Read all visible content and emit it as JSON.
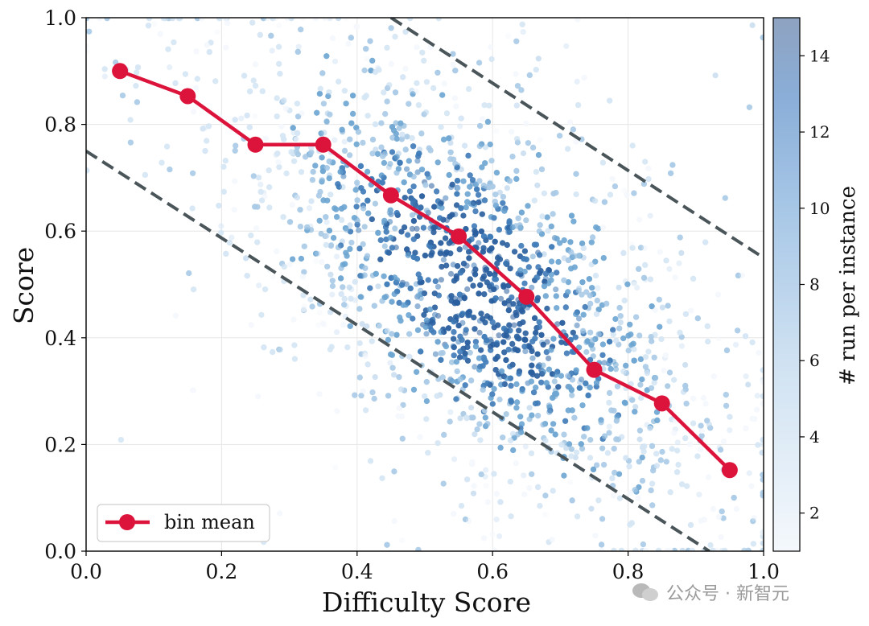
{
  "chart_data": {
    "type": "scatter",
    "xlabel": "Difficulty Score",
    "ylabel": "Score",
    "xlim": [
      0.0,
      1.0
    ],
    "ylim": [
      0.0,
      1.0
    ],
    "x_ticks": [
      "0.0",
      "0.2",
      "0.4",
      "0.6",
      "0.8",
      "1.0"
    ],
    "y_ticks": [
      "0.0",
      "0.2",
      "0.4",
      "0.6",
      "0.8",
      "1.0"
    ],
    "grid": true,
    "legend": {
      "placement": "lower-left",
      "entries": [
        "bin mean"
      ]
    },
    "series": [
      {
        "name": "bin mean",
        "style": "line-with-markers",
        "color": "#dc143c",
        "x": [
          0.05,
          0.15,
          0.25,
          0.35,
          0.45,
          0.55,
          0.65,
          0.75,
          0.85,
          0.95
        ],
        "y": [
          0.9,
          0.853,
          0.762,
          0.762,
          0.667,
          0.59,
          0.477,
          0.34,
          0.277,
          0.152
        ]
      }
    ],
    "reference_lines": [
      {
        "style": "dashed",
        "color": "#4a555a",
        "x": [
          0.45,
          1.0
        ],
        "y": [
          1.0,
          0.55
        ]
      },
      {
        "style": "dashed",
        "color": "#4a555a",
        "x": [
          0.0,
          0.92
        ],
        "y": [
          0.75,
          0.0
        ]
      }
    ],
    "scatter_cloud": {
      "count": 5200,
      "color_encoding": "# run per instance",
      "colormap": [
        "#f4f8fc",
        "#d6e5f4",
        "#a9cbe6",
        "#6ea6d2",
        "#3f7cb8",
        "#2a5f9e"
      ]
    },
    "colorbar": {
      "label": "# run per instance",
      "range": [
        1,
        15
      ],
      "ticks": [
        "2",
        "4",
        "6",
        "8",
        "10",
        "12",
        "14"
      ]
    }
  },
  "watermark": {
    "text": "公众号 · 新智元"
  }
}
